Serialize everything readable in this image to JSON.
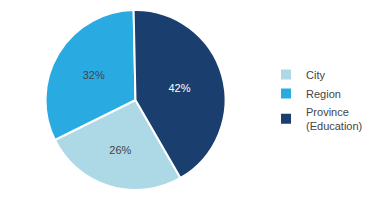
{
  "chart_data": {
    "type": "pie",
    "categories": [
      "City",
      "Region",
      "Province\n(Education)"
    ],
    "values": [
      26,
      32,
      42
    ],
    "value_labels": [
      "26%",
      "32%",
      "42%"
    ],
    "colors": [
      "#add8e6",
      "#29abe2",
      "#1a3f6f"
    ],
    "data_labels": true,
    "legend": "right"
  }
}
